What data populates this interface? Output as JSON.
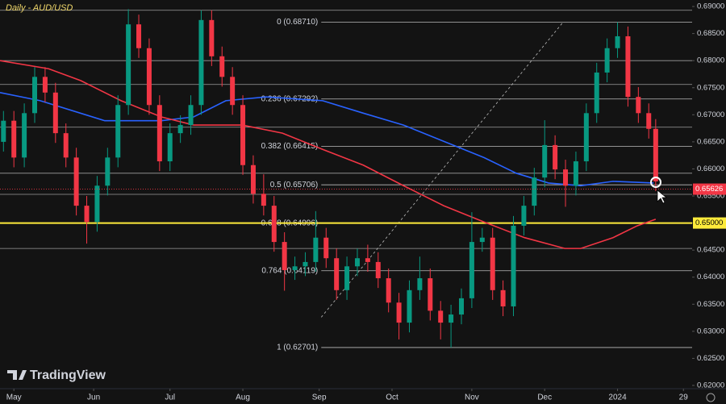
{
  "chart_data": {
    "type": "candlestick",
    "title": "Daily - AUD/USD",
    "watermark": "TradingView",
    "xlim": [
      -4,
      195.5
    ],
    "xticks": [
      {
        "value": 0,
        "label": "May"
      },
      {
        "value": 23,
        "label": "Jun"
      },
      {
        "value": 45,
        "label": "Jul"
      },
      {
        "value": 66,
        "label": "Aug"
      },
      {
        "value": 88,
        "label": "Sep"
      },
      {
        "value": 109,
        "label": "Oct"
      },
      {
        "value": 132,
        "label": "Nov"
      },
      {
        "value": 153,
        "label": "Dec"
      },
      {
        "value": 174,
        "label": "2024"
      },
      {
        "value": 193,
        "label": "29"
      }
    ],
    "ylim": [
      0.6194,
      0.6912
    ],
    "yticks": [
      {
        "value": 0.62,
        "label": "0.62000"
      },
      {
        "value": 0.625,
        "label": "0.62500"
      },
      {
        "value": 0.63,
        "label": "0.63000"
      },
      {
        "value": 0.635,
        "label": "0.63500"
      },
      {
        "value": 0.64,
        "label": "0.64000"
      },
      {
        "value": 0.645,
        "label": "0.64500"
      },
      {
        "value": 0.65,
        "label": "0.65000"
      },
      {
        "value": 0.655,
        "label": "0.65500"
      },
      {
        "value": 0.66,
        "label": "0.66000"
      },
      {
        "value": 0.665,
        "label": "0.66500"
      },
      {
        "value": 0.67,
        "label": "0.67000"
      },
      {
        "value": 0.675,
        "label": "0.67500"
      },
      {
        "value": 0.68,
        "label": "0.68000"
      },
      {
        "value": 0.685,
        "label": "0.68500"
      },
      {
        "value": 0.69,
        "label": "0.69000"
      }
    ],
    "up_color": "#089981",
    "down_color": "#f23645",
    "x": [
      -3,
      0,
      3,
      6,
      9,
      12,
      15,
      18,
      21,
      24,
      27,
      30,
      33,
      36,
      39,
      42,
      45,
      48,
      51,
      54,
      57,
      60,
      63,
      66,
      69,
      72,
      75,
      78,
      81,
      84,
      87,
      90,
      93,
      96,
      99,
      102,
      105,
      108,
      111,
      114,
      117,
      120,
      123,
      126,
      129,
      132,
      135,
      138,
      141,
      144,
      147,
      150,
      153,
      156,
      159,
      162,
      165,
      168,
      171,
      174,
      177,
      180,
      183,
      185
    ],
    "open": [
      0.665,
      0.6689,
      0.6621,
      0.6703,
      0.677,
      0.6741,
      0.6666,
      0.6621,
      0.6532,
      0.6502,
      0.6569,
      0.6621,
      0.6718,
      0.6867,
      0.6823,
      0.6718,
      0.6614,
      0.6666,
      0.6681,
      0.6718,
      0.6875,
      0.6808,
      0.677,
      0.6718,
      0.6607,
      0.6554,
      0.6532,
      0.6465,
      0.6413,
      0.642,
      0.6428,
      0.6473,
      0.6435,
      0.6376,
      0.642,
      0.6435,
      0.6428,
      0.6398,
      0.6353,
      0.6316,
      0.6376,
      0.6398,
      0.6338,
      0.6316,
      0.6331,
      0.6361,
      0.6465,
      0.6473,
      0.6376,
      0.6346,
      0.6495,
      0.6532,
      0.6584,
      0.6644,
      0.6599,
      0.6569,
      0.6614,
      0.6703,
      0.6778,
      0.6823,
      0.6845,
      0.6733,
      0.6703,
      0.6674
    ],
    "high": [
      0.6707,
      0.6707,
      0.6721,
      0.6788,
      0.6788,
      0.6759,
      0.6684,
      0.6639,
      0.655,
      0.6587,
      0.6639,
      0.6736,
      0.6895,
      0.6885,
      0.6841,
      0.6736,
      0.6684,
      0.6699,
      0.6736,
      0.6893,
      0.6893,
      0.6826,
      0.6788,
      0.6736,
      0.6625,
      0.659,
      0.655,
      0.6483,
      0.6438,
      0.6446,
      0.6522,
      0.6491,
      0.6453,
      0.6438,
      0.6453,
      0.646,
      0.6446,
      0.6416,
      0.6371,
      0.6394,
      0.6438,
      0.6416,
      0.6356,
      0.6349,
      0.6379,
      0.652,
      0.6491,
      0.6491,
      0.6394,
      0.6513,
      0.655,
      0.6602,
      0.669,
      0.6662,
      0.6617,
      0.6632,
      0.6721,
      0.6796,
      0.6841,
      0.6871,
      0.6863,
      0.6751,
      0.6721,
      0.6692
    ],
    "low": [
      0.6632,
      0.6603,
      0.6603,
      0.6685,
      0.6723,
      0.6648,
      0.6603,
      0.6514,
      0.6462,
      0.6484,
      0.6551,
      0.6603,
      0.67,
      0.6805,
      0.67,
      0.6596,
      0.6596,
      0.6648,
      0.6663,
      0.67,
      0.679,
      0.6752,
      0.67,
      0.6589,
      0.6536,
      0.6514,
      0.6447,
      0.6375,
      0.6395,
      0.6402,
      0.641,
      0.6417,
      0.6358,
      0.6358,
      0.6402,
      0.641,
      0.638,
      0.6335,
      0.6285,
      0.6298,
      0.6358,
      0.632,
      0.6285,
      0.627,
      0.6313,
      0.6343,
      0.6447,
      0.6358,
      0.6328,
      0.6328,
      0.6477,
      0.6514,
      0.6566,
      0.6581,
      0.653,
      0.6551,
      0.6596,
      0.6685,
      0.676,
      0.6805,
      0.6715,
      0.6685,
      0.6656,
      0.6559
    ],
    "close": [
      0.6689,
      0.6621,
      0.6703,
      0.677,
      0.6741,
      0.6666,
      0.6621,
      0.6532,
      0.6502,
      0.6569,
      0.6621,
      0.6718,
      0.6867,
      0.6823,
      0.6718,
      0.6614,
      0.6666,
      0.6681,
      0.6718,
      0.6875,
      0.6808,
      0.677,
      0.6718,
      0.6607,
      0.6554,
      0.6532,
      0.6465,
      0.6413,
      0.642,
      0.6428,
      0.6473,
      0.6435,
      0.6376,
      0.642,
      0.6435,
      0.6428,
      0.6398,
      0.6353,
      0.6316,
      0.6376,
      0.6398,
      0.6338,
      0.6316,
      0.6331,
      0.6361,
      0.6465,
      0.6473,
      0.6376,
      0.6346,
      0.6495,
      0.6532,
      0.6584,
      0.6644,
      0.6599,
      0.6569,
      0.6614,
      0.6703,
      0.6778,
      0.6823,
      0.6845,
      0.6733,
      0.6703,
      0.6674,
      0.6577
    ],
    "series": [
      {
        "color": "#2962ff",
        "x": [
          -4,
          7.6,
          26.2,
          42.5,
          51.8,
          61.1,
          72.7,
          89,
          100.7,
          112.3,
          123.9,
          135.5,
          144.8,
          154.1,
          163.4,
          172.7,
          184.4
        ],
        "values": [
          0.6741,
          0.6726,
          0.6689,
          0.6689,
          0.6696,
          0.6726,
          0.6733,
          0.6726,
          0.6703,
          0.6681,
          0.6651,
          0.6621,
          0.6592,
          0.6574,
          0.6569,
          0.6577,
          0.6574
        ]
      },
      {
        "color": "#f23645",
        "x": [
          -4,
          10,
          19.3,
          30.9,
          42.5,
          51.8,
          65.8,
          77.4,
          89,
          100.7,
          112.3,
          123.9,
          135.5,
          147.2,
          158.8,
          163.4,
          172.7,
          179.7,
          185
        ],
        "values": [
          0.68,
          0.6785,
          0.6763,
          0.6726,
          0.6696,
          0.6681,
          0.6681,
          0.6666,
          0.6636,
          0.6607,
          0.6569,
          0.6532,
          0.6502,
          0.6473,
          0.6453,
          0.6453,
          0.6473,
          0.6495,
          0.6507
        ]
      }
    ],
    "levels": [
      0.6893,
      0.68,
      0.6756,
      0.6677,
      0.6592,
      0.6553,
      0.6453
    ],
    "level_color": "#9e9e9e",
    "key_level": {
      "value": 0.65,
      "label": "0.65000",
      "color": "#ffeb3b"
    },
    "last_price": {
      "value": 0.65626,
      "label": "0.65626"
    },
    "fib_start": 88.6,
    "fib_levels": [
      {
        "value": 0.6871,
        "label": "0 (0.68710)"
      },
      {
        "value": 0.67292,
        "label": "0.236 (0.67292)"
      },
      {
        "value": 0.66415,
        "label": "0.382 (0.66415)"
      },
      {
        "value": 0.65706,
        "label": "0.5 (0.65706)"
      },
      {
        "value": 0.64996,
        "label": "0.618 (0.64996)"
      },
      {
        "value": 0.64119,
        "label": "0.764 (0.64119)"
      },
      {
        "value": 0.62701,
        "label": "1 (0.62701)"
      }
    ],
    "trendline": {
      "x": [
        88.6,
        158.3
      ],
      "values": [
        0.6326,
        0.6871
      ]
    }
  }
}
